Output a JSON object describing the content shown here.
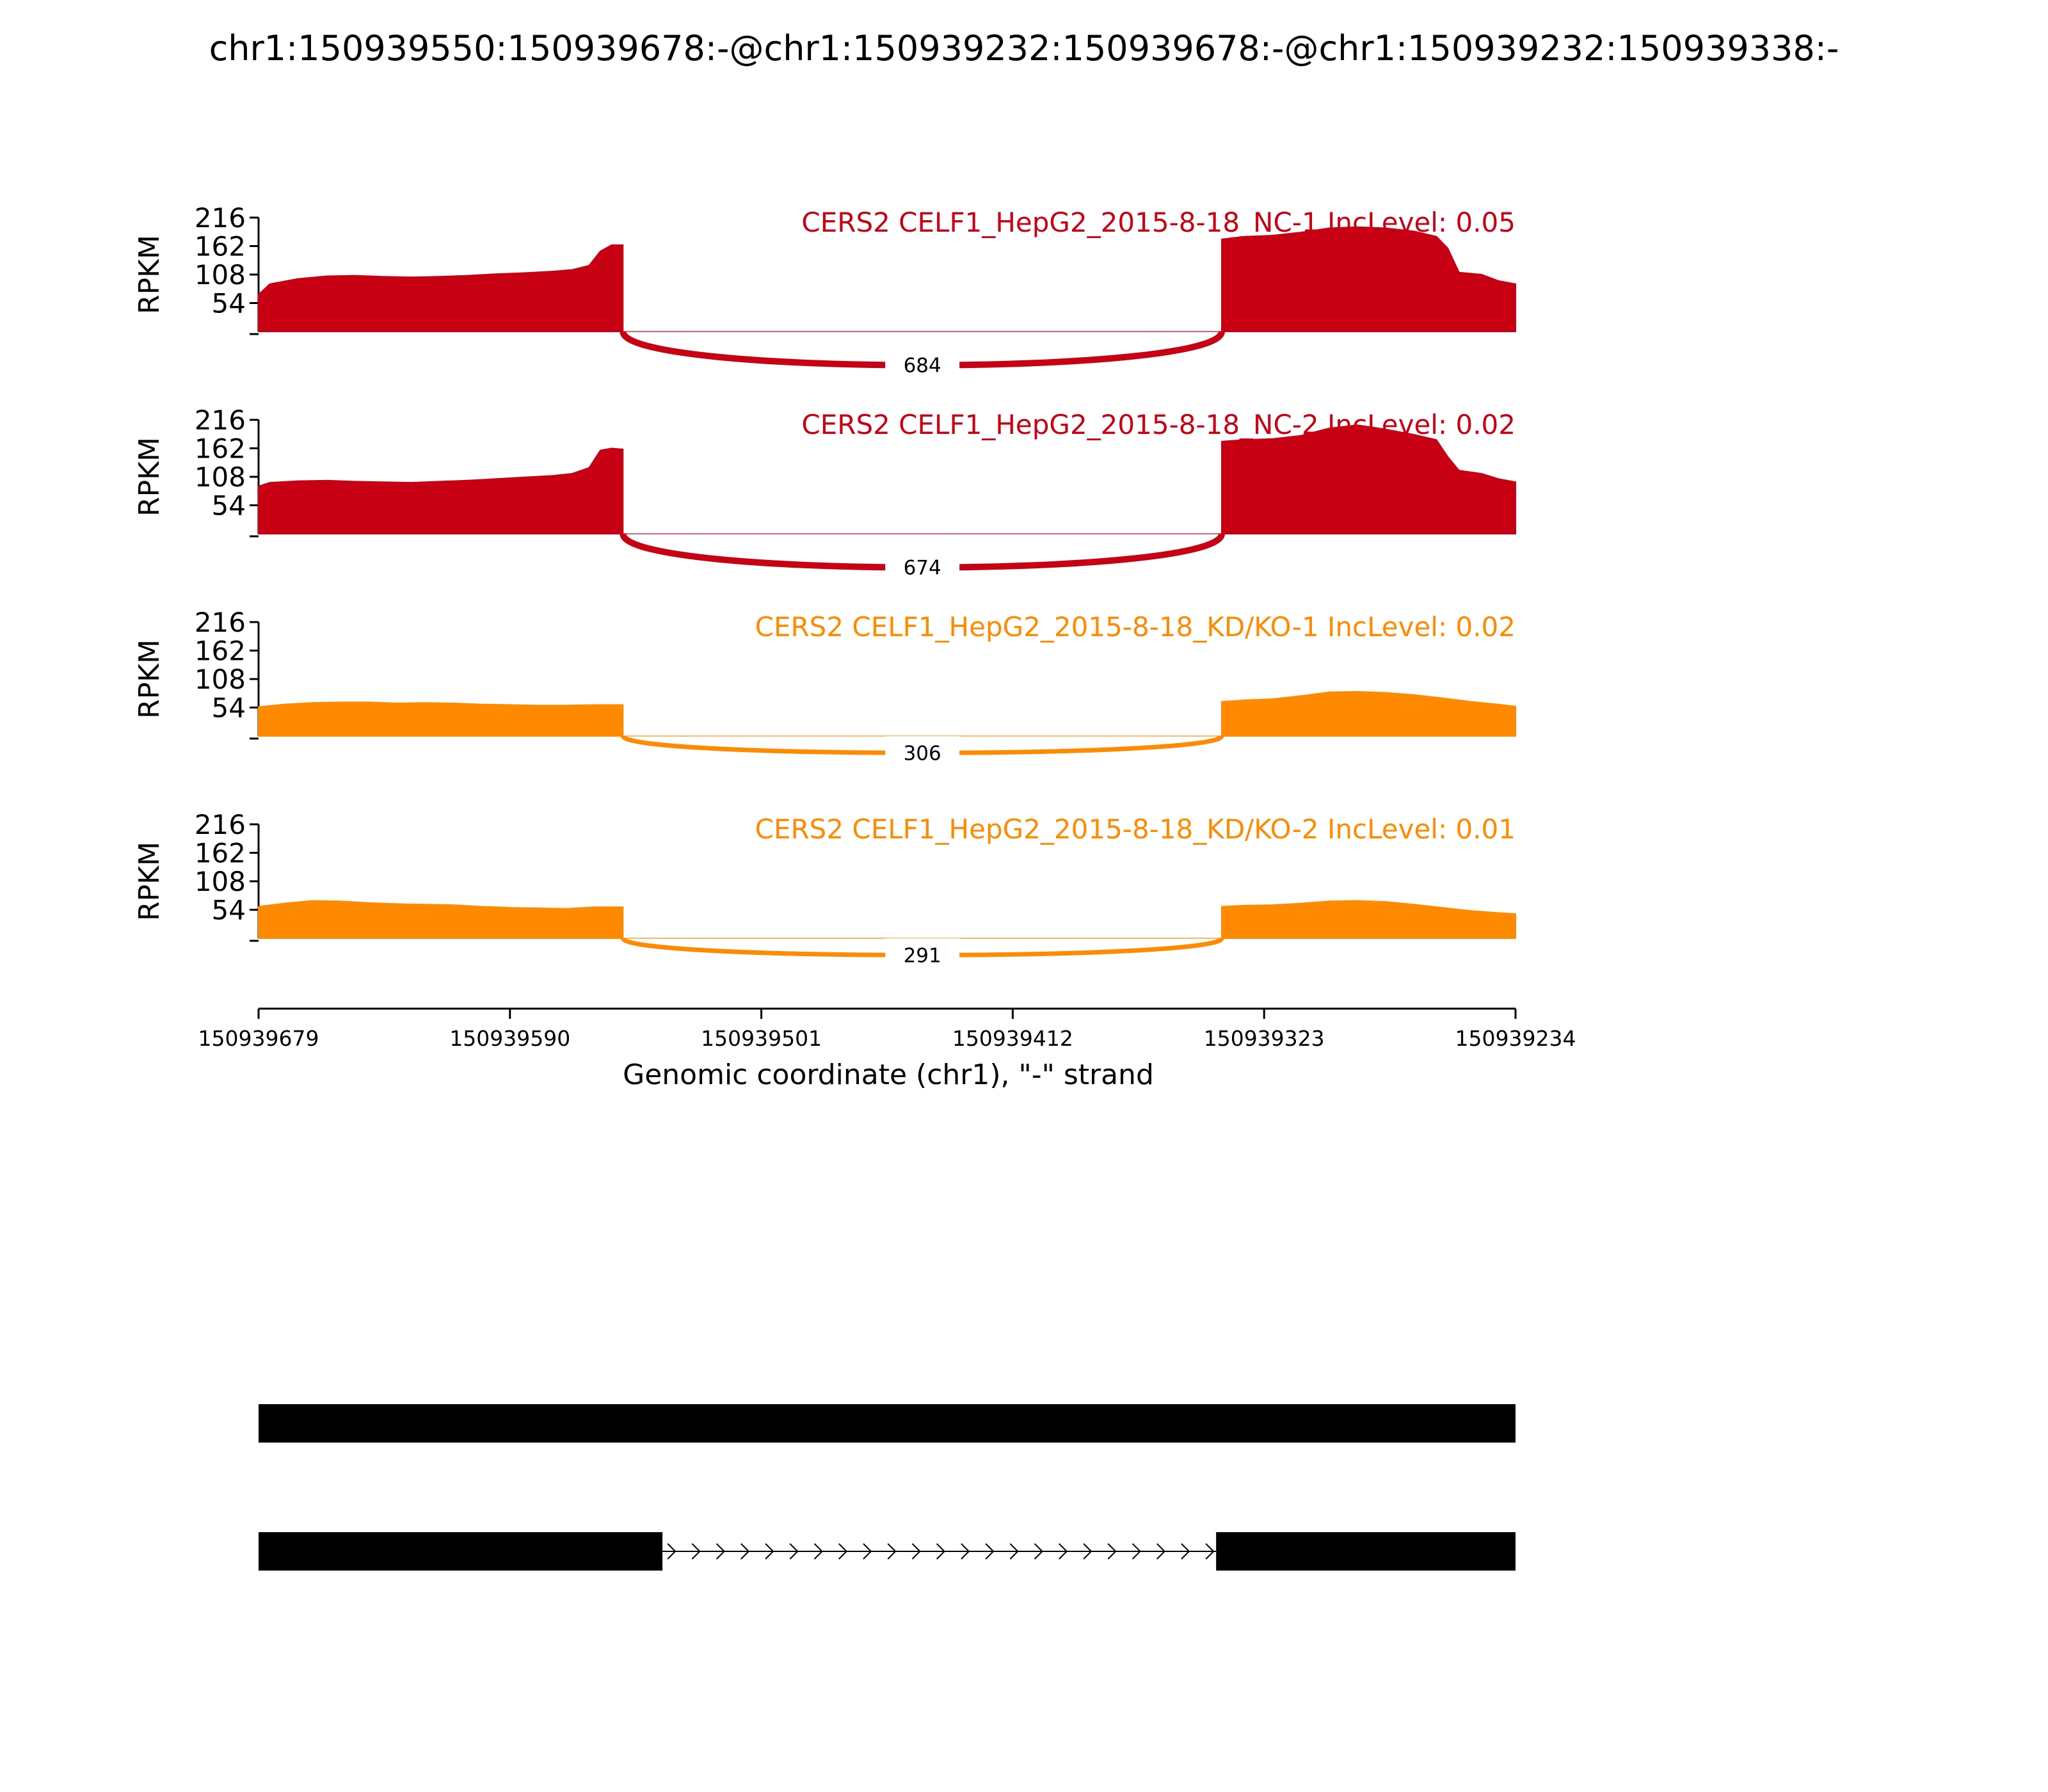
{
  "chart_data": {
    "type": "area",
    "title": "chr1:150939550:150939678:-@chr1:150939232:150939678:-@chr1:150939232:150939338:-",
    "xlabel": "Genomic coordinate (chr1), \"-\" strand",
    "ylabel": "RPKM",
    "ylim": [
      0,
      216
    ],
    "yticks": [
      54,
      108,
      162,
      216
    ],
    "xlim": [
      150939679,
      150939234
    ],
    "xticks": [
      "150939679",
      "150939590",
      "150939501",
      "150939412",
      "150939323",
      "150939234"
    ],
    "colors": {
      "nc": "#c80014",
      "kd": "#ff8a00"
    },
    "series": [
      {
        "name": "CERS2 CELF1_HepG2_2015-8-18_NC-1 IncLevel: 0.05",
        "color": "#c80014",
        "junction_count": "684",
        "exon1": [
          [
            150939679,
            70
          ],
          [
            150939675,
            90
          ],
          [
            150939665,
            100
          ],
          [
            150939655,
            105
          ],
          [
            150939645,
            106
          ],
          [
            150939635,
            104
          ],
          [
            150939625,
            103
          ],
          [
            150939615,
            104
          ],
          [
            150939605,
            106
          ],
          [
            150939595,
            109
          ],
          [
            150939585,
            111
          ],
          [
            150939575,
            114
          ],
          [
            150939568,
            117
          ],
          [
            150939562,
            125
          ],
          [
            150939558,
            152
          ],
          [
            150939554,
            164
          ],
          [
            150939550,
            164
          ]
        ],
        "exon2": [
          [
            150939338,
            175
          ],
          [
            150939330,
            180
          ],
          [
            150939320,
            182
          ],
          [
            150939310,
            188
          ],
          [
            150939300,
            196
          ],
          [
            150939290,
            198
          ],
          [
            150939280,
            196
          ],
          [
            150939270,
            190
          ],
          [
            150939262,
            180
          ],
          [
            150939258,
            158
          ],
          [
            150939254,
            112
          ],
          [
            150939246,
            108
          ],
          [
            150939240,
            96
          ],
          [
            150939234,
            90
          ]
        ]
      },
      {
        "name": "CERS2 CELF1_HepG2_2015-8-18_NC-2 IncLevel: 0.02",
        "color": "#c80014",
        "junction_count": "674",
        "exon1": [
          [
            150939679,
            90
          ],
          [
            150939675,
            97
          ],
          [
            150939665,
            100
          ],
          [
            150939655,
            101
          ],
          [
            150939645,
            99
          ],
          [
            150939635,
            98
          ],
          [
            150939625,
            97
          ],
          [
            150939615,
            99
          ],
          [
            150939605,
            101
          ],
          [
            150939595,
            104
          ],
          [
            150939585,
            107
          ],
          [
            150939575,
            110
          ],
          [
            150939568,
            114
          ],
          [
            150939562,
            125
          ],
          [
            150939558,
            158
          ],
          [
            150939554,
            162
          ],
          [
            150939550,
            160
          ]
        ],
        "exon2": [
          [
            150939338,
            175
          ],
          [
            150939330,
            178
          ],
          [
            150939320,
            180
          ],
          [
            150939310,
            186
          ],
          [
            150939300,
            200
          ],
          [
            150939290,
            206
          ],
          [
            150939280,
            198
          ],
          [
            150939270,
            188
          ],
          [
            150939262,
            178
          ],
          [
            150939258,
            146
          ],
          [
            150939254,
            120
          ],
          [
            150939246,
            114
          ],
          [
            150939240,
            104
          ],
          [
            150939234,
            98
          ]
        ]
      },
      {
        "name": "CERS2 CELF1_HepG2_2015-8-18_KD/KO-1 IncLevel: 0.02",
        "color": "#ff8a00",
        "junction_count": "306",
        "exon1": [
          [
            150939679,
            55
          ],
          [
            150939670,
            60
          ],
          [
            150939660,
            63
          ],
          [
            150939650,
            64
          ],
          [
            150939640,
            64
          ],
          [
            150939630,
            62
          ],
          [
            150939620,
            63
          ],
          [
            150939610,
            62
          ],
          [
            150939600,
            60
          ],
          [
            150939590,
            59
          ],
          [
            150939580,
            58
          ],
          [
            150939570,
            58
          ],
          [
            150939560,
            59
          ],
          [
            150939550,
            59
          ]
        ],
        "exon2": [
          [
            150939338,
            65
          ],
          [
            150939330,
            68
          ],
          [
            150939320,
            70
          ],
          [
            150939310,
            76
          ],
          [
            150939300,
            83
          ],
          [
            150939290,
            84
          ],
          [
            150939280,
            82
          ],
          [
            150939270,
            78
          ],
          [
            150939260,
            72
          ],
          [
            150939250,
            65
          ],
          [
            150939240,
            60
          ],
          [
            150939234,
            56
          ]
        ]
      },
      {
        "name": "CERS2 CELF1_HepG2_2015-8-18_KD/KO-2 IncLevel: 0.01",
        "color": "#ff8a00",
        "junction_count": "291",
        "exon1": [
          [
            150939679,
            60
          ],
          [
            150939670,
            66
          ],
          [
            150939660,
            71
          ],
          [
            150939650,
            70
          ],
          [
            150939640,
            67
          ],
          [
            150939630,
            65
          ],
          [
            150939620,
            64
          ],
          [
            150939610,
            63
          ],
          [
            150939600,
            60
          ],
          [
            150939590,
            58
          ],
          [
            150939580,
            57
          ],
          [
            150939570,
            56
          ],
          [
            150939560,
            59
          ],
          [
            150939550,
            59
          ]
        ],
        "exon2": [
          [
            150939338,
            60
          ],
          [
            150939330,
            62
          ],
          [
            150939320,
            63
          ],
          [
            150939310,
            66
          ],
          [
            150939300,
            70
          ],
          [
            150939290,
            71
          ],
          [
            150939280,
            69
          ],
          [
            150939270,
            64
          ],
          [
            150939260,
            58
          ],
          [
            150939250,
            52
          ],
          [
            150939240,
            48
          ],
          [
            150939234,
            46
          ]
        ]
      }
    ],
    "isoforms": [
      {
        "exons": [
          [
            150939679,
            150939234
          ]
        ]
      },
      {
        "exons": [
          [
            150939679,
            150939536
          ],
          [
            150939340,
            150939234
          ]
        ],
        "intron_chevrons": 23
      }
    ]
  }
}
